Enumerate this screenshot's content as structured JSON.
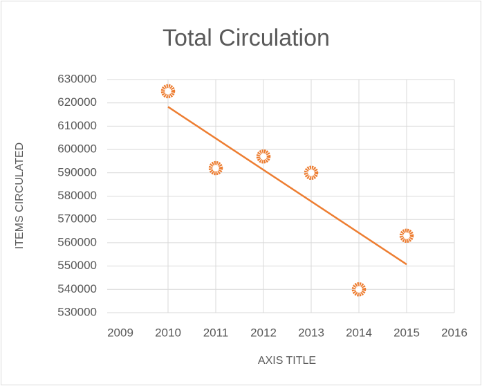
{
  "chart_data": {
    "type": "scatter",
    "title": "Total Circulation",
    "x_label": "AXIS TITLE",
    "y_label": "ITEMS CIRCULATED",
    "x": [
      2010,
      2011,
      2012,
      2013,
      2014,
      2015
    ],
    "series": [
      {
        "name": "Total Circulation",
        "color": "#ed7d31",
        "values": [
          625000,
          592000,
          597000,
          590000,
          540000,
          563000
        ]
      }
    ],
    "trendline": "linear",
    "trendline_color": "#ed7d31",
    "xlim": [
      2009,
      2016
    ],
    "xticks": [
      2009,
      2010,
      2011,
      2012,
      2013,
      2014,
      2015,
      2016
    ],
    "ylim": [
      530000,
      630000
    ],
    "yticks": [
      530000,
      540000,
      550000,
      560000,
      570000,
      580000,
      590000,
      600000,
      610000,
      620000,
      630000
    ],
    "grid": true
  }
}
